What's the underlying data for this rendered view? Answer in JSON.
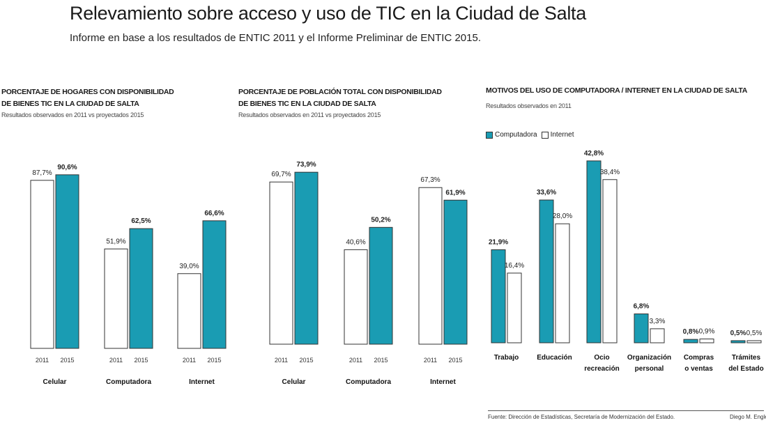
{
  "title": "Relevamiento sobre acceso y uso de TIC en la Ciudad de Salta",
  "subtitle": "Informe en base a los resultados de ENTIC 2011 y el Informe Preliminar de ENTIC 2015.",
  "colors": {
    "teal": "#1a9cb3",
    "white": "#ffffff",
    "outline": "#333333"
  },
  "panels": {
    "hogares": {
      "title_line1": "PORCENTAJE DE HOGARES CON DISPONIBILIDAD",
      "title_line2": "DE BIENES TIC EN LA CIUDAD DE SALTA",
      "note": "Resultados observados en 2011 vs proyectados 2015"
    },
    "poblacion": {
      "title_line1": "PORCENTAJE DE POBLACIÓN TOTAL CON DISPONIBILIDAD",
      "title_line2": "DE BIENES TIC EN LA CIUDAD DE SALTA",
      "note": "Resultados observados en 2011 vs proyectados 2015"
    },
    "motivos": {
      "title": "MOTIVOS DEL USO DE COMPUTADORA / INTERNET EN LA CIUDAD DE SALTA",
      "note": "Resultados observados en 2011",
      "legend_computadora": "Computadora",
      "legend_internet": "Internet"
    }
  },
  "chart_data": [
    {
      "type": "bar",
      "title": "PORCENTAJE DE HOGARES CON DISPONIBILIDAD DE BIENES TIC EN LA CIUDAD DE SALTA",
      "categories": [
        "Celular",
        "Computadora",
        "Internet"
      ],
      "x_sublabels": [
        "2011",
        "2015"
      ],
      "series": [
        {
          "name": "2011",
          "values": [
            87.7,
            51.9,
            39.0
          ],
          "labels": [
            "87,7%",
            "51,9%",
            "39,0%"
          ],
          "color": "#ffffff"
        },
        {
          "name": "2015",
          "values": [
            90.6,
            62.5,
            66.6
          ],
          "labels": [
            "90,6%",
            "62,5%",
            "66,6%"
          ],
          "color": "#1a9cb3"
        }
      ],
      "ylim": [
        0,
        100
      ]
    },
    {
      "type": "bar",
      "title": "PORCENTAJE DE POBLACIÓN TOTAL CON DISPONIBILIDAD DE BIENES TIC EN LA CIUDAD DE SALTA",
      "categories": [
        "Celular",
        "Computadora",
        "Internet"
      ],
      "x_sublabels": [
        "2011",
        "2015"
      ],
      "series": [
        {
          "name": "2011",
          "values": [
            69.7,
            40.6,
            67.3
          ],
          "labels": [
            "69,7%",
            "40,6%",
            "67,3%"
          ],
          "color": "#ffffff"
        },
        {
          "name": "2015",
          "values": [
            73.9,
            50.2,
            61.9
          ],
          "labels": [
            "73,9%",
            "50,2%",
            "61,9%"
          ],
          "color": "#1a9cb3"
        }
      ],
      "ylim": [
        0,
        80
      ]
    },
    {
      "type": "bar",
      "title": "MOTIVOS DEL USO DE COMPUTADORA / INTERNET EN LA CIUDAD DE SALTA",
      "categories": [
        "Trabajo",
        "Educación",
        "Ocio\nrecreación",
        "Organización\npersonal",
        "Compras\no ventas",
        "Trámites\ndel Estado"
      ],
      "series": [
        {
          "name": "Computadora",
          "values": [
            21.9,
            33.6,
            42.8,
            6.8,
            0.8,
            0.5
          ],
          "labels": [
            "21,9%",
            "33,6%",
            "42,8%",
            "6,8%",
            "0,8%",
            "0,5%"
          ],
          "color": "#1a9cb3"
        },
        {
          "name": "Internet",
          "values": [
            16.4,
            28.0,
            38.4,
            3.3,
            0.9,
            0.5
          ],
          "labels": [
            "16,4%",
            "28,0%",
            "38,4%",
            "3,3%",
            "0,9%",
            "0,5%"
          ],
          "color": "#ffffff"
        }
      ],
      "legend": "top-left",
      "ylim": [
        0,
        45
      ]
    }
  ],
  "footer": {
    "source": "Fuente: Dirección de Estadísticas, Secretaría de Modernización del Estado.",
    "author": "Diego M. Engle"
  }
}
